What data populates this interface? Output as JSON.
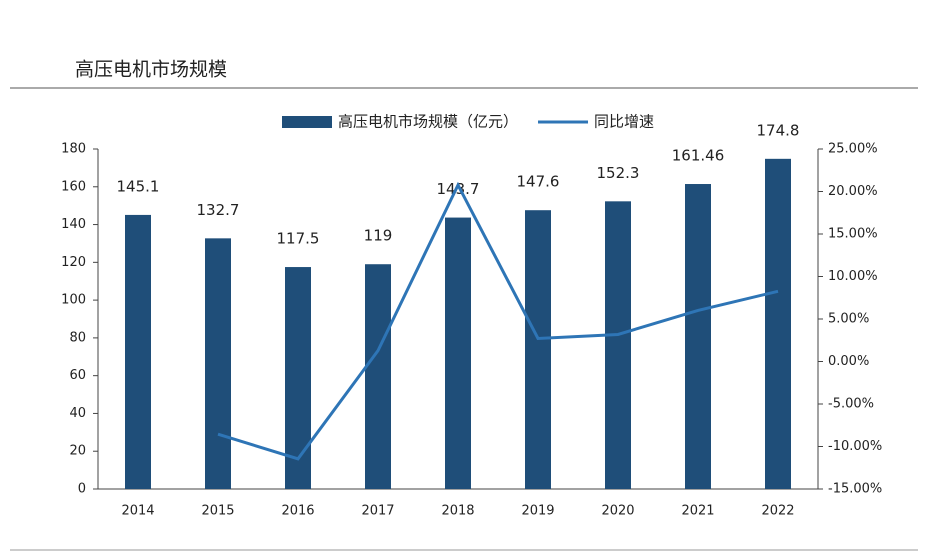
{
  "chart_data": {
    "type": "bar",
    "title": "高压电机市场规模",
    "categories": [
      "2014",
      "2015",
      "2016",
      "2017",
      "2018",
      "2019",
      "2020",
      "2021",
      "2022"
    ],
    "series": [
      {
        "name": "高压电机市场规模（亿元）",
        "type": "bar",
        "color": "#1f4e79",
        "values": [
          145.1,
          132.7,
          117.5,
          119,
          143.7,
          147.6,
          152.3,
          161.46,
          174.8
        ]
      },
      {
        "name": "同比增速",
        "type": "line",
        "axis": "y2",
        "color": "#2e75b6",
        "values": [
          null,
          -8.55,
          -11.45,
          1.28,
          20.76,
          2.71,
          3.18,
          6.01,
          8.26
        ]
      }
    ],
    "ylim": [
      0,
      180
    ],
    "yticks": [
      0,
      20,
      40,
      60,
      80,
      100,
      120,
      140,
      160,
      180
    ],
    "y2lim": [
      -15,
      25
    ],
    "y2ticks": [
      {
        "value": -15,
        "label": "-15.00%"
      },
      {
        "value": -10,
        "label": "-10.00%"
      },
      {
        "value": -5,
        "label": "-5.00%"
      },
      {
        "value": 0,
        "label": "0.00%"
      },
      {
        "value": 5,
        "label": "5.00%"
      },
      {
        "value": 10,
        "label": "10.00%"
      },
      {
        "value": 15,
        "label": "15.00%"
      },
      {
        "value": 20,
        "label": "20.00%"
      },
      {
        "value": 25,
        "label": "25.00%"
      }
    ],
    "legend": "top"
  }
}
